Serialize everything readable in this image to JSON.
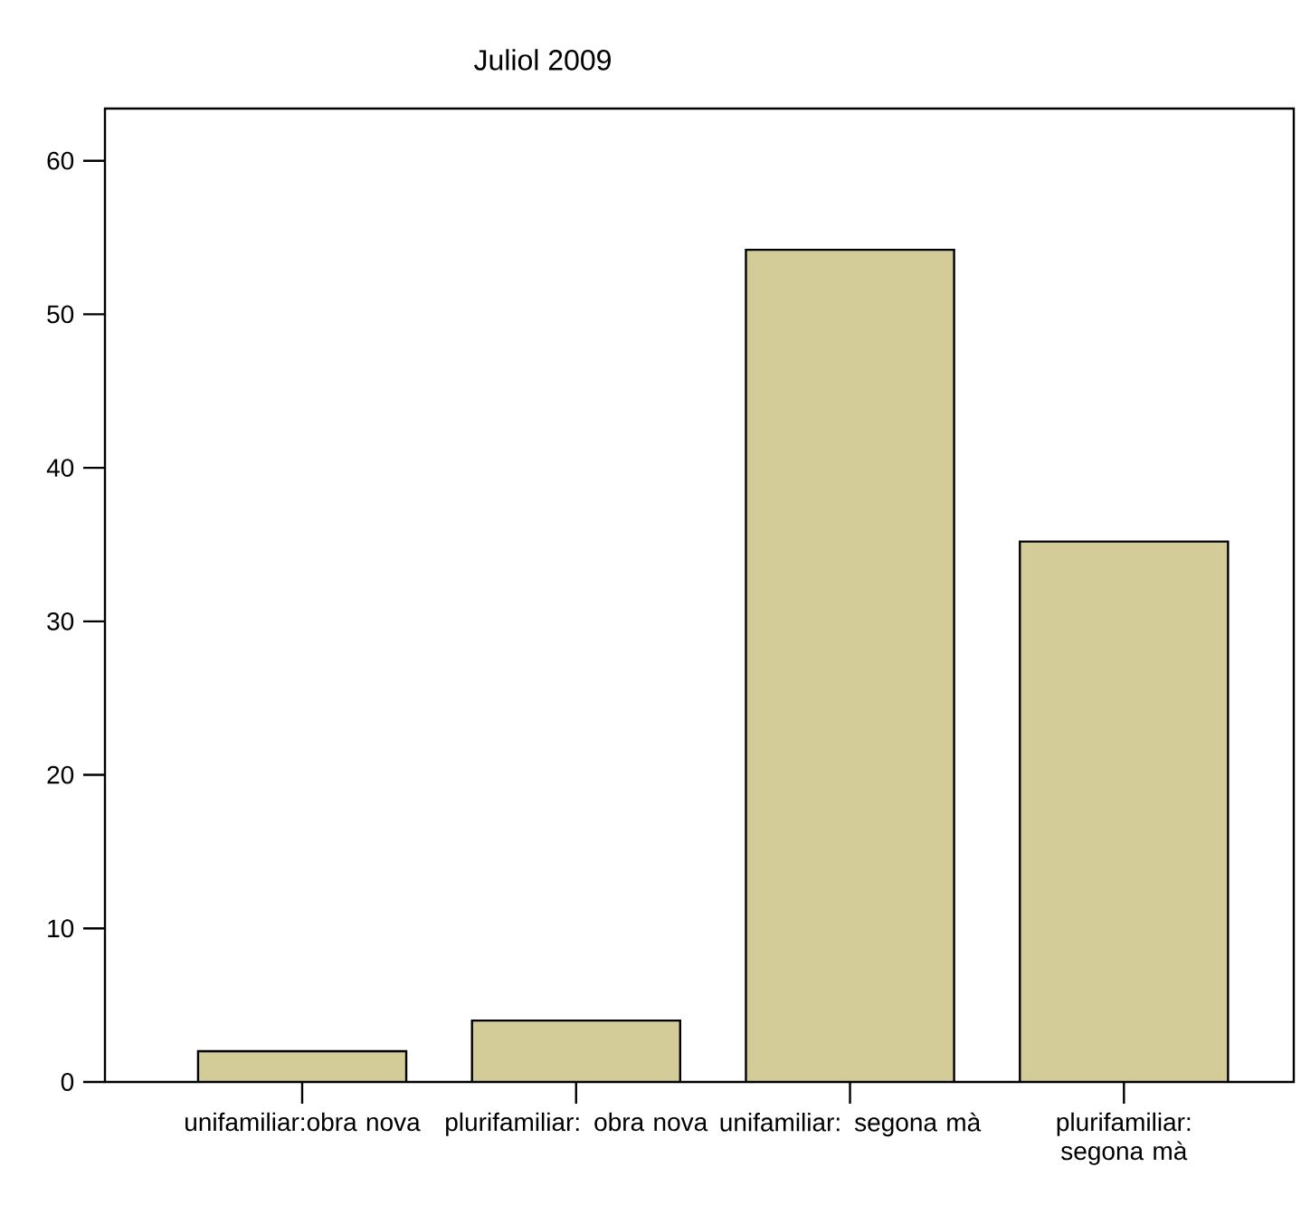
{
  "chart_data": {
    "type": "bar",
    "title": "Juliol 2009",
    "categories": [
      "unifamiliar:obra nova",
      "plurifamiliar: obra nova",
      "unifamiliar: segona mà",
      "plurifamiliar: segona mà"
    ],
    "values": [
      2,
      4,
      54.2,
      35.2
    ],
    "color": "#d3cc98",
    "ylim": [
      0,
      63.4
    ],
    "yticks": [
      0,
      10,
      20,
      30,
      40,
      50,
      60
    ],
    "grid": false
  }
}
